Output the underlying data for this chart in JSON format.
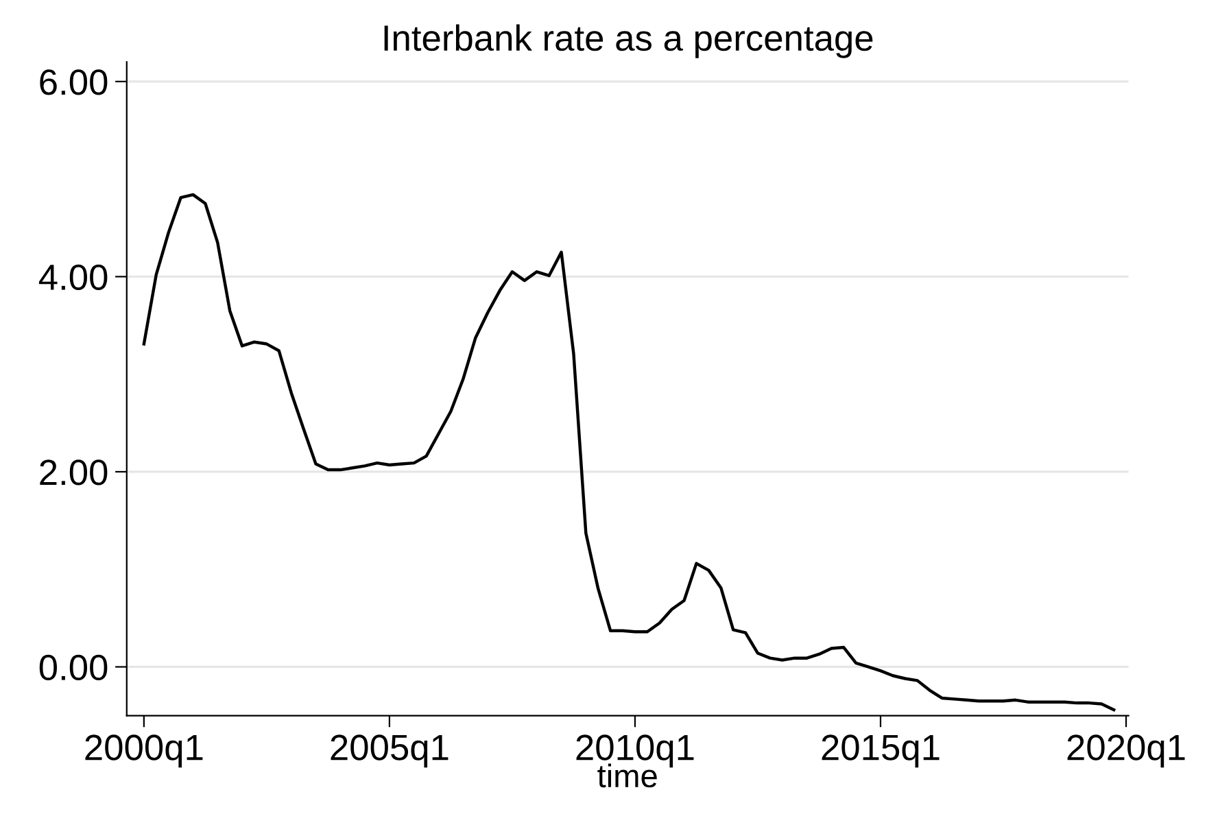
{
  "chart_data": {
    "type": "line",
    "title": "Interbank rate as a percentage",
    "xlabel": "time",
    "categories": [
      "2000q1",
      null,
      null,
      null,
      null,
      null,
      null,
      null,
      null,
      null,
      null,
      null,
      null,
      null,
      null,
      null,
      null,
      null,
      null,
      null,
      "2005q1",
      null,
      null,
      null,
      null,
      null,
      null,
      null,
      null,
      null,
      null,
      null,
      null,
      null,
      null,
      null,
      null,
      null,
      null,
      null,
      "2010q1",
      null,
      null,
      null,
      null,
      null,
      null,
      null,
      null,
      null,
      null,
      null,
      null,
      null,
      null,
      null,
      null,
      null,
      null,
      null,
      "2015q1",
      null,
      null,
      null,
      null,
      null,
      null,
      null,
      null,
      null,
      null,
      null,
      null,
      null,
      null,
      null,
      null,
      null,
      null,
      null,
      "2020q1"
    ],
    "series": [
      {
        "color": "#000000",
        "values": [
          3.31,
          4.02,
          4.45,
          4.81,
          4.84,
          4.75,
          4.35,
          3.65,
          3.29,
          3.33,
          3.31,
          3.24,
          2.81,
          2.44,
          2.08,
          2.02,
          2.02,
          2.04,
          2.06,
          2.09,
          2.07,
          2.08,
          2.09,
          2.16,
          2.39,
          2.62,
          2.95,
          3.37,
          3.63,
          3.86,
          4.05,
          3.96,
          4.05,
          4.01,
          4.25,
          3.21,
          1.37,
          0.8,
          0.37,
          0.37,
          0.36,
          0.36,
          0.45,
          0.59,
          0.68,
          1.06,
          0.99,
          0.81,
          0.38,
          0.35,
          0.14,
          0.09,
          0.07,
          0.09,
          0.09,
          0.13,
          0.19,
          0.2,
          0.04,
          0.0,
          -0.04,
          -0.09,
          -0.12,
          -0.14,
          -0.24,
          -0.32,
          -0.33,
          -0.34,
          -0.35,
          -0.35,
          -0.35,
          -0.34,
          -0.36,
          -0.36,
          -0.36,
          -0.36,
          -0.37,
          -0.37,
          -0.38,
          -0.44,
          null
        ]
      }
    ],
    "ylim": [
      -0.5,
      6.2
    ],
    "yticks": [
      {
        "value": 0,
        "label": "0.00"
      },
      {
        "value": 2,
        "label": "2.00"
      },
      {
        "value": 4,
        "label": "4.00"
      },
      {
        "value": 6,
        "label": "6.00"
      }
    ],
    "grid": "y",
    "legend": false,
    "marker": "none",
    "line_style": "solid"
  }
}
